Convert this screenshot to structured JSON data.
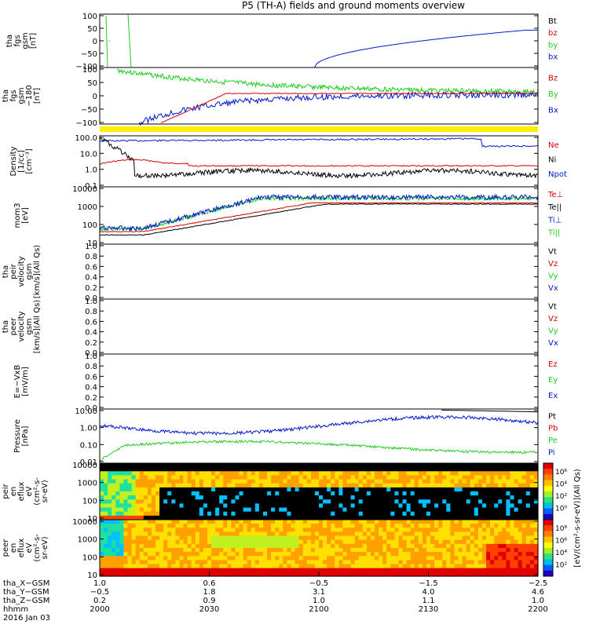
{
  "title": "P5 (TH-A) fields and ground moments overview",
  "colors": {
    "black": "#000000",
    "red": "#d40000",
    "green": "#22cc22",
    "blue": "#0018c8",
    "yellow": "#ffee00"
  },
  "chart_data": [
    {
      "id": "fgs",
      "type": "line",
      "ylabel": [
        "tha",
        "fgs",
        "gsm",
        "[nT]"
      ],
      "ylim": [
        -100,
        100
      ],
      "yticks": [
        "100",
        "50",
        "0",
        "−50",
        "−100"
      ],
      "legend": [
        {
          "name": "Bt",
          "color": "black"
        },
        {
          "name": "bz",
          "color": "red"
        },
        {
          "name": "by",
          "color": "green"
        },
        {
          "name": "bx",
          "color": "blue"
        }
      ]
    },
    {
      "id": "fgs_ebar",
      "type": "line",
      "ylabel": [
        "tha",
        "fgs",
        "gsm",
        "−180",
        "[nT]"
      ],
      "ylim": [
        -100,
        100
      ],
      "yticks": [
        "100",
        "50",
        "0",
        "−50",
        "−100"
      ],
      "legend": [
        {
          "name": "Bz",
          "color": "red"
        },
        {
          "name": "By",
          "color": "green"
        },
        {
          "name": "Bx",
          "color": "blue"
        }
      ]
    },
    {
      "id": "density",
      "type": "line",
      "yscale": "log",
      "ylabel": [
        "Density",
        "[1/cc]",
        "[cm⁻³]"
      ],
      "ylim": [
        0.1,
        100
      ],
      "yticks": [
        "100.0",
        "10.0",
        "1.0",
        "0.1"
      ],
      "legend": [
        {
          "name": "Ne",
          "color": "red"
        },
        {
          "name": "Ni",
          "color": "black"
        },
        {
          "name": "Npot",
          "color": "blue"
        }
      ]
    },
    {
      "id": "temperature",
      "type": "line",
      "yscale": "log",
      "ylabel": [
        "mom3",
        "[eV]"
      ],
      "ylim": [
        3,
        10000
      ],
      "yticks": [
        "10000",
        "1000",
        "100",
        "10"
      ],
      "legend": [
        {
          "name": "Te⊥",
          "color": "red"
        },
        {
          "name": "Te||",
          "color": "black"
        },
        {
          "name": "Ti⊥",
          "color": "blue"
        },
        {
          "name": "Ti||",
          "color": "green"
        }
      ]
    },
    {
      "id": "peir_velocity",
      "type": "line",
      "ylabel": [
        "tha",
        "peir",
        "velocity",
        "gsm",
        "[km/s](All Qs)"
      ],
      "ylim": [
        0,
        1
      ],
      "yticks": [
        "1.0",
        "0.8",
        "0.6",
        "0.4",
        "0.2",
        "0.0"
      ],
      "legend": [
        {
          "name": "Vt",
          "color": "black"
        },
        {
          "name": "Vz",
          "color": "red"
        },
        {
          "name": "Vy",
          "color": "green"
        },
        {
          "name": "Vx",
          "color": "blue"
        }
      ]
    },
    {
      "id": "peer_velocity",
      "type": "line",
      "ylabel": [
        "tha",
        "peer",
        "velocity",
        "gsm",
        "[km/s](All Qs)"
      ],
      "ylim": [
        0,
        1
      ],
      "yticks": [
        "1.0",
        "0.8",
        "0.6",
        "0.4",
        "0.2",
        "0.0"
      ],
      "legend": [
        {
          "name": "Vt",
          "color": "black"
        },
        {
          "name": "Vz",
          "color": "red"
        },
        {
          "name": "Vy",
          "color": "green"
        },
        {
          "name": "Vx",
          "color": "blue"
        }
      ]
    },
    {
      "id": "efield",
      "type": "line",
      "ylabel": [
        "E=−VxB",
        "[mV/m]"
      ],
      "ylim": [
        0,
        1
      ],
      "yticks": [
        "1.0",
        "0.8",
        "0.6",
        "0.4",
        "0.2",
        "0.0"
      ],
      "legend": [
        {
          "name": "Ez",
          "color": "red"
        },
        {
          "name": "Ey",
          "color": "green"
        },
        {
          "name": "Ex",
          "color": "blue"
        }
      ]
    },
    {
      "id": "pressure",
      "type": "line",
      "yscale": "log",
      "ylabel": [
        "Pressure",
        "[nPa]"
      ],
      "ylim": [
        0.005,
        20
      ],
      "yticks": [
        "10.00",
        "1.00",
        "0.10",
        "0.01"
      ],
      "legend": [
        {
          "name": "Pt",
          "color": "black"
        },
        {
          "name": "Pb",
          "color": "red"
        },
        {
          "name": "Pe",
          "color": "green"
        },
        {
          "name": "Pi",
          "color": "blue"
        }
      ]
    },
    {
      "id": "peir_eflux",
      "type": "heatmap",
      "yscale": "log",
      "ylabel": [
        "tha",
        "peir",
        "en",
        "eflux",
        "eV",
        "(cm²-s-",
        "sr-eV)"
      ],
      "ylim": [
        6,
        30000
      ],
      "yticks": [
        "10000",
        "1000",
        "100",
        "10"
      ],
      "colorbar": {
        "ticks": [
          "10⁶",
          "10⁴",
          "10²",
          "10⁰"
        ],
        "label": "[eV/(cm²-s-sr-eV)](All Qs)"
      }
    },
    {
      "id": "peer_eflux",
      "type": "heatmap",
      "yscale": "log",
      "ylabel": [
        "tha",
        "peer",
        "en",
        "eflux",
        "eV",
        "(cm²-s-",
        "sr-eV)"
      ],
      "ylim": [
        6,
        30000
      ],
      "yticks": [
        "10000",
        "1000",
        "100",
        "10"
      ],
      "colorbar": {
        "ticks": [
          "10⁸",
          "10⁶",
          "10⁴",
          "10²"
        ],
        "label": "[eV/(cm²-s-sr-eV)](All Qs)"
      }
    }
  ],
  "xaxis": {
    "rows": [
      {
        "label": "tha_X−GSM",
        "values": [
          "1.0",
          "0.6",
          "−0.5",
          "−1.5",
          "−2.5"
        ]
      },
      {
        "label": "tha_Y−GSM",
        "values": [
          "−0.5",
          "1.8",
          "3.1",
          "4.0",
          "4.6"
        ]
      },
      {
        "label": "tha_Z−GSM",
        "values": [
          "0.2",
          "0.9",
          "1.0",
          "1.1",
          "1.0"
        ]
      },
      {
        "label": "hhmm",
        "values": [
          "2000",
          "2030",
          "2100",
          "2130",
          "2200"
        ]
      }
    ],
    "date": "2016 Jan 03"
  }
}
